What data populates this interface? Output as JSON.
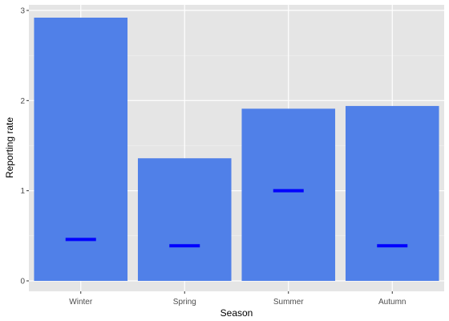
{
  "chart_data": {
    "type": "bar",
    "xlabel": "Season",
    "ylabel": "Reporting rate",
    "categories": [
      "Winter",
      "Spring",
      "Summer",
      "Autumn"
    ],
    "series": [
      {
        "values": [
          2.92,
          1.36,
          1.91,
          1.94
        ],
        "color": "#5080E8"
      },
      {
        "kind": "reference-line",
        "values": [
          0.46,
          0.39,
          1.0,
          0.39
        ],
        "color": "#0000FF"
      }
    ],
    "ylim": [
      0,
      3
    ],
    "yticks": [
      0,
      1,
      2,
      3
    ],
    "grid": true,
    "panel_background": "#E5E5E5"
  }
}
